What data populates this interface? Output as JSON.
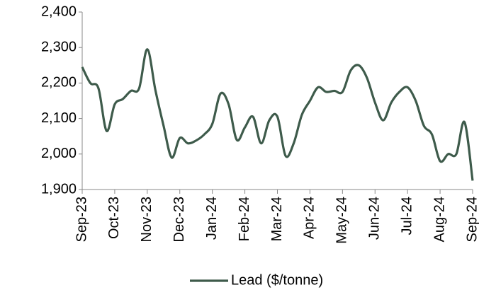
{
  "chart_data": {
    "type": "line",
    "categories": [
      "Sep-23",
      null,
      null,
      null,
      "Oct-23",
      null,
      null,
      null,
      "Nov-23",
      null,
      null,
      null,
      "Dec-23",
      null,
      null,
      null,
      "Jan-24",
      null,
      null,
      null,
      "Feb-24",
      null,
      null,
      null,
      "Mar-24",
      null,
      null,
      null,
      "Apr-24",
      null,
      null,
      null,
      "May-24",
      null,
      null,
      null,
      "Jun-24",
      null,
      null,
      null,
      "Jul-24",
      null,
      null,
      null,
      "Aug-24",
      null,
      null,
      null,
      "Sep-24"
    ],
    "series": [
      {
        "name": "Lead ($/tonne)",
        "color": "#3e5b4b",
        "values": [
          2245,
          2200,
          2185,
          2065,
          2140,
          2155,
          2178,
          2185,
          2295,
          2180,
          2080,
          1990,
          2045,
          2030,
          2038,
          2055,
          2085,
          2170,
          2140,
          2040,
          2075,
          2105,
          2030,
          2095,
          2105,
          1995,
          2030,
          2110,
          2150,
          2188,
          2175,
          2178,
          2175,
          2235,
          2250,
          2215,
          2145,
          2095,
          2145,
          2175,
          2188,
          2150,
          2080,
          2055,
          1980,
          2000,
          2000,
          2090,
          1925
        ]
      }
    ],
    "ylim": [
      1900,
      2400
    ],
    "yticks": [
      {
        "value": 1900,
        "label": "1,900"
      },
      {
        "value": 2000,
        "label": "2,000"
      },
      {
        "value": 2100,
        "label": "2,100"
      },
      {
        "value": 2200,
        "label": "2,200"
      },
      {
        "value": 2300,
        "label": "2,300"
      },
      {
        "value": 2400,
        "label": "2,400"
      }
    ],
    "legend": "bottom"
  }
}
